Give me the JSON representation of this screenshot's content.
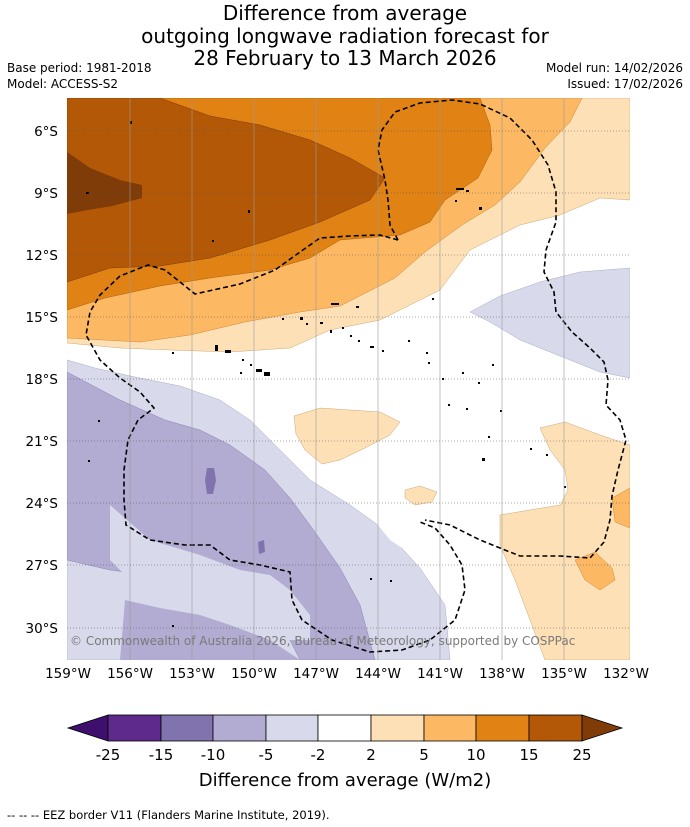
{
  "header": {
    "title_line1": "Difference from average",
    "title_line2": "outgoing longwave radiation forecast for",
    "title_line3": "28 February to 13 March 2026",
    "base_period": "Base period: 1981-2018",
    "model": "Model: ACCESS-S2",
    "model_run": "Model run: 14/02/2026",
    "issued": "Issued: 17/02/2026"
  },
  "map": {
    "lat_labels": [
      "6°S",
      "9°S",
      "12°S",
      "15°S",
      "18°S",
      "21°S",
      "24°S",
      "27°S",
      "30°S"
    ],
    "lon_labels": [
      "159°W",
      "156°W",
      "153°W",
      "150°W",
      "147°W",
      "144°W",
      "141°W",
      "138°W",
      "135°W",
      "132°W"
    ],
    "copyright": "© Commonwealth of Australia 2026, Bureau of Meteorology, supported by COSPPac"
  },
  "colorbar": {
    "ticks": [
      "-25",
      "-15",
      "-10",
      "-5",
      "-2",
      "2",
      "5",
      "10",
      "15",
      "25"
    ],
    "title": "Difference from average (W/m2)",
    "colors": [
      "#3f0f6e",
      "#5e2a8c",
      "#8173ad",
      "#b2abd2",
      "#d8daeb",
      "#ffffff",
      "#fee0b6",
      "#fdb863",
      "#e08214",
      "#b35806",
      "#7f3b08"
    ]
  },
  "footer": {
    "legend": "--  --  -- EEZ border V11 (Flanders Marine Institute, 2019)."
  }
}
